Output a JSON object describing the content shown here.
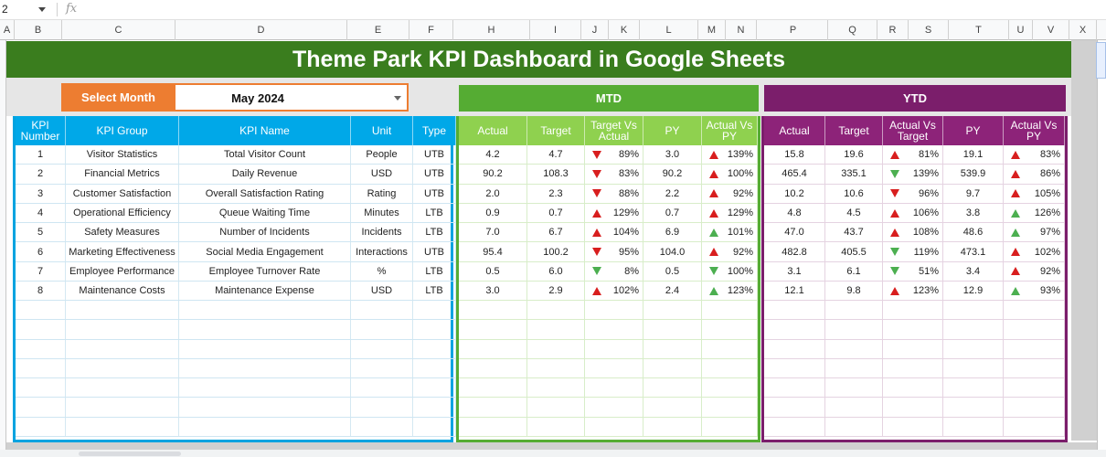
{
  "formula_bar": {
    "name_box": "2",
    "fx_label": "fx"
  },
  "columns": [
    "A",
    "B",
    "C",
    "D",
    "E",
    "F",
    "H",
    "I",
    "J",
    "K",
    "L",
    "M",
    "N",
    "P",
    "Q",
    "R",
    "S",
    "T",
    "U",
    "V",
    "X"
  ],
  "title": "Theme Park KPI Dashboard in Google Sheets",
  "selector": {
    "label": "Select Month",
    "value": "May 2024"
  },
  "sections": {
    "mtd": "MTD",
    "ytd": "YTD"
  },
  "kpi_headers": [
    "KPI Number",
    "KPI Group",
    "KPI Name",
    "Unit",
    "Type"
  ],
  "mtd_headers": [
    "Actual",
    "Target",
    "Target Vs Actual",
    "PY",
    "Actual Vs PY"
  ],
  "ytd_headers": [
    "Actual",
    "Target",
    "Actual Vs Target",
    "PY",
    "Actual Vs PY"
  ],
  "colors": {
    "banner": "#3a7d1e",
    "select": "#ed7d31",
    "mtd": "#55ac33",
    "ytd": "#7b1e6b",
    "kpi_header": "#00a8e8",
    "up_red": "#d81e1e",
    "green": "#4caf50"
  },
  "rows": [
    {
      "num": "1",
      "group": "Visitor Statistics",
      "name": "Total Visitor Count",
      "unit": "People",
      "type": "UTB",
      "mtd": {
        "actual": "4.2",
        "target": "4.7",
        "tva": "89%",
        "tva_icon": "down-red",
        "py": "3.0",
        "avp": "139%",
        "avp_icon": "up-red"
      },
      "ytd": {
        "actual": "15.8",
        "target": "19.6",
        "avt": "81%",
        "avt_icon": "up-red",
        "py": "19.1",
        "avp": "83%",
        "avp_icon": "up-red"
      }
    },
    {
      "num": "2",
      "group": "Financial Metrics",
      "name": "Daily Revenue",
      "unit": "USD",
      "type": "UTB",
      "mtd": {
        "actual": "90.2",
        "target": "108.3",
        "tva": "83%",
        "tva_icon": "down-red",
        "py": "90.2",
        "avp": "100%",
        "avp_icon": "up-red"
      },
      "ytd": {
        "actual": "465.4",
        "target": "335.1",
        "avt": "139%",
        "avt_icon": "down-green",
        "py": "539.9",
        "avp": "86%",
        "avp_icon": "up-red"
      }
    },
    {
      "num": "3",
      "group": "Customer Satisfaction",
      "name": "Overall Satisfaction Rating",
      "unit": "Rating",
      "type": "UTB",
      "mtd": {
        "actual": "2.0",
        "target": "2.3",
        "tva": "88%",
        "tva_icon": "down-red",
        "py": "2.2",
        "avp": "92%",
        "avp_icon": "up-red"
      },
      "ytd": {
        "actual": "10.2",
        "target": "10.6",
        "avt": "96%",
        "avt_icon": "down-red",
        "py": "9.7",
        "avp": "105%",
        "avp_icon": "up-red"
      }
    },
    {
      "num": "4",
      "group": "Operational Efficiency",
      "name": "Queue Waiting Time",
      "unit": "Minutes",
      "type": "LTB",
      "mtd": {
        "actual": "0.9",
        "target": "0.7",
        "tva": "129%",
        "tva_icon": "up-red",
        "py": "0.7",
        "avp": "129%",
        "avp_icon": "up-red"
      },
      "ytd": {
        "actual": "4.8",
        "target": "4.5",
        "avt": "106%",
        "avt_icon": "up-red",
        "py": "3.8",
        "avp": "126%",
        "avp_icon": "up-green"
      }
    },
    {
      "num": "5",
      "group": "Safety Measures",
      "name": "Number of Incidents",
      "unit": "Incidents",
      "type": "LTB",
      "mtd": {
        "actual": "7.0",
        "target": "6.7",
        "tva": "104%",
        "tva_icon": "up-red",
        "py": "6.9",
        "avp": "101%",
        "avp_icon": "up-green"
      },
      "ytd": {
        "actual": "47.0",
        "target": "43.7",
        "avt": "108%",
        "avt_icon": "up-red",
        "py": "48.6",
        "avp": "97%",
        "avp_icon": "up-green"
      }
    },
    {
      "num": "6",
      "group": "Marketing Effectiveness",
      "name": "Social Media Engagement",
      "unit": "Interactions",
      "type": "UTB",
      "mtd": {
        "actual": "95.4",
        "target": "100.2",
        "tva": "95%",
        "tva_icon": "down-red",
        "py": "104.0",
        "avp": "92%",
        "avp_icon": "up-red"
      },
      "ytd": {
        "actual": "482.8",
        "target": "405.5",
        "avt": "119%",
        "avt_icon": "down-green",
        "py": "473.1",
        "avp": "102%",
        "avp_icon": "up-red"
      }
    },
    {
      "num": "7",
      "group": "Employee Performance",
      "name": "Employee Turnover Rate",
      "unit": "%",
      "type": "LTB",
      "mtd": {
        "actual": "0.5",
        "target": "6.0",
        "tva": "8%",
        "tva_icon": "down-green",
        "py": "0.5",
        "avp": "100%",
        "avp_icon": "down-green"
      },
      "ytd": {
        "actual": "3.1",
        "target": "6.1",
        "avt": "51%",
        "avt_icon": "down-green",
        "py": "3.4",
        "avp": "92%",
        "avp_icon": "up-red"
      }
    },
    {
      "num": "8",
      "group": "Maintenance Costs",
      "name": "Maintenance Expense",
      "unit": "USD",
      "type": "LTB",
      "mtd": {
        "actual": "3.0",
        "target": "2.9",
        "tva": "102%",
        "tva_icon": "up-red",
        "py": "2.4",
        "avp": "123%",
        "avp_icon": "up-green"
      },
      "ytd": {
        "actual": "12.1",
        "target": "9.8",
        "avt": "123%",
        "avt_icon": "up-red",
        "py": "12.9",
        "avp": "93%",
        "avp_icon": "up-green"
      }
    }
  ]
}
